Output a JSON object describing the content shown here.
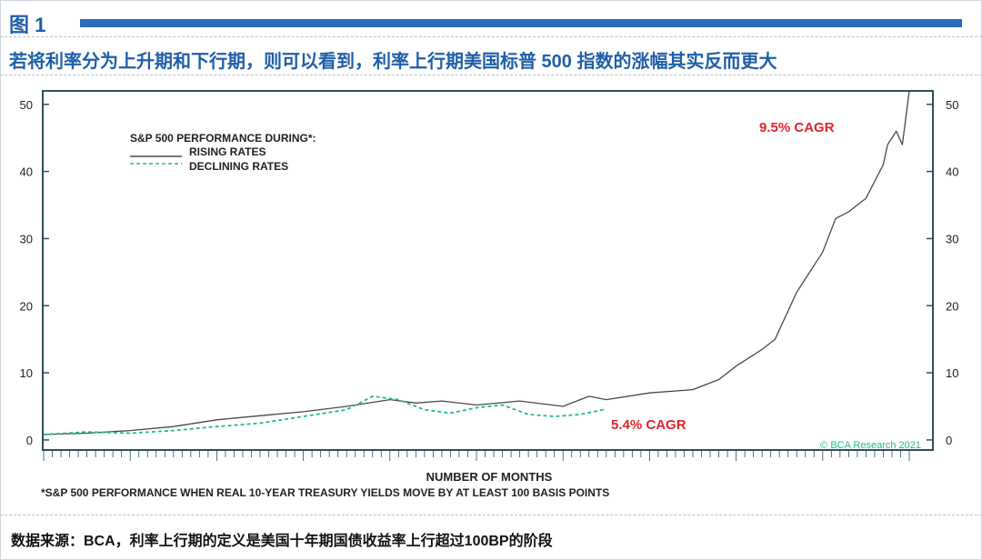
{
  "figure_label": "图 1",
  "headline": "若将利率分为上升期和下行期，则可以看到，利率上行期美国标普 500 指数的涨幅其实反而更大",
  "source_note": "数据来源：BCA，利率上行期的定义是美国十年期国债收益率上行超过100BP的阶段",
  "colors": {
    "accent": "#1f5fa8",
    "bar": "#2b6cb8",
    "rising": "#4a4a4a",
    "declining": "#1fbf84",
    "annotation": "#e0242c",
    "axis": "#2f4f5f"
  },
  "chart_data": {
    "type": "line",
    "legend": {
      "title": "S&P 500 PERFORMANCE DURING*:",
      "items": [
        "RISING RATES",
        "DECLINING RATES"
      ]
    },
    "xlabel": "NUMBER OF MONTHS",
    "footnote": "*S&P 500 PERFORMANCE WHEN REAL 10-YEAR TREASURY YIELDS MOVE BY AT LEAST 100 BASIS POINTS",
    "credit": "© BCA Research 2021",
    "ylim": [
      -1.5,
      52
    ],
    "xlim": [
      0,
      1000
    ],
    "yticks": [
      0,
      10,
      20,
      30,
      40,
      50
    ],
    "ytick_labels": [
      "0",
      "10",
      "20",
      "30",
      "40",
      "50"
    ],
    "grid": false,
    "annotations": [
      {
        "text": "9.5% CAGR",
        "series": "RISING RATES"
      },
      {
        "text": "5.4% CAGR",
        "series": "DECLINING RATES"
      }
    ],
    "series": [
      {
        "name": "RISING RATES",
        "x": [
          0,
          50,
          100,
          150,
          200,
          250,
          300,
          350,
          400,
          430,
          460,
          500,
          550,
          600,
          630,
          650,
          700,
          750,
          780,
          800,
          830,
          845,
          870,
          900,
          915,
          930,
          950,
          970,
          975,
          985,
          992,
          1000
        ],
        "y": [
          0.8,
          1.0,
          1.4,
          2.0,
          3.0,
          3.6,
          4.2,
          5.0,
          6.0,
          5.5,
          5.8,
          5.2,
          5.8,
          5.0,
          6.5,
          6.0,
          7.0,
          7.5,
          9.0,
          11.0,
          13.5,
          15.0,
          22.0,
          28.0,
          33.0,
          34.0,
          36.0,
          41.0,
          44.0,
          46.0,
          44.0,
          52.0
        ]
      },
      {
        "name": "DECLINING RATES",
        "x": [
          0,
          50,
          100,
          150,
          200,
          250,
          300,
          350,
          380,
          410,
          440,
          470,
          500,
          530,
          560,
          590,
          620,
          650
        ],
        "y": [
          0.8,
          1.2,
          1.0,
          1.4,
          2.0,
          2.5,
          3.5,
          4.5,
          6.5,
          6.0,
          4.5,
          4.0,
          4.8,
          5.2,
          3.8,
          3.5,
          3.8,
          4.6
        ]
      }
    ]
  }
}
